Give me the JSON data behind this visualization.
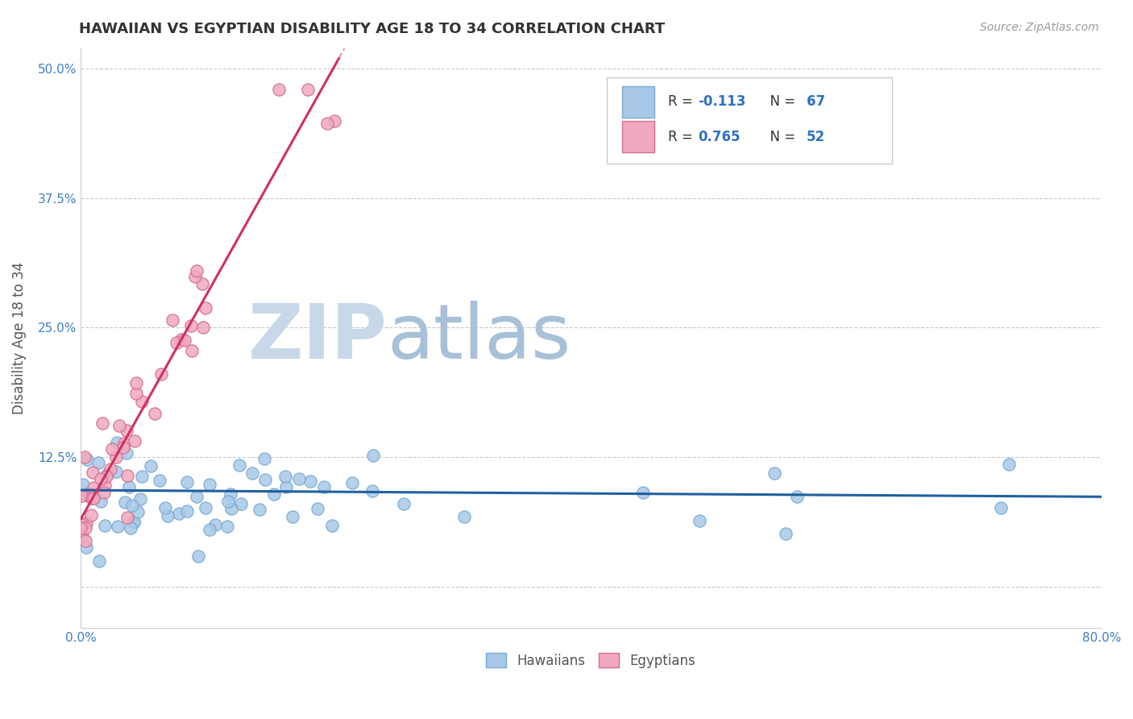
{
  "title": "HAWAIIAN VS EGYPTIAN DISABILITY AGE 18 TO 34 CORRELATION CHART",
  "source": "Source: ZipAtlas.com",
  "ylabel": "Disability Age 18 to 34",
  "x_min": 0.0,
  "x_max": 0.8,
  "y_min": -0.04,
  "y_max": 0.52,
  "x_ticks": [
    0.0,
    0.1,
    0.2,
    0.3,
    0.4,
    0.5,
    0.6,
    0.7,
    0.8
  ],
  "x_tick_labels": [
    "0.0%",
    "",
    "",
    "",
    "",
    "",
    "",
    "",
    "80.0%"
  ],
  "y_ticks": [
    0.0,
    0.125,
    0.25,
    0.375,
    0.5
  ],
  "y_tick_labels": [
    "",
    "12.5%",
    "25.0%",
    "37.5%",
    "50.0%"
  ],
  "hawaiian_R": -0.113,
  "hawaiian_N": 67,
  "egyptian_R": 0.765,
  "egyptian_N": 52,
  "hawaiian_color": "#A8C8E8",
  "hawaiian_edge_color": "#7AAAD0",
  "hawaiian_line_color": "#2060A0",
  "egyptian_color": "#F0A8C0",
  "egyptian_edge_color": "#D07090",
  "egyptian_line_color": "#D03060",
  "watermark_zip": "ZIP",
  "watermark_atlas": "atlas",
  "watermark_zip_color": "#C8D8E8",
  "watermark_atlas_color": "#A8C0D8",
  "grid_color": "#C8C8D0",
  "legend_label_hawaiians": "Hawaiians",
  "legend_label_egyptians": "Egyptians"
}
